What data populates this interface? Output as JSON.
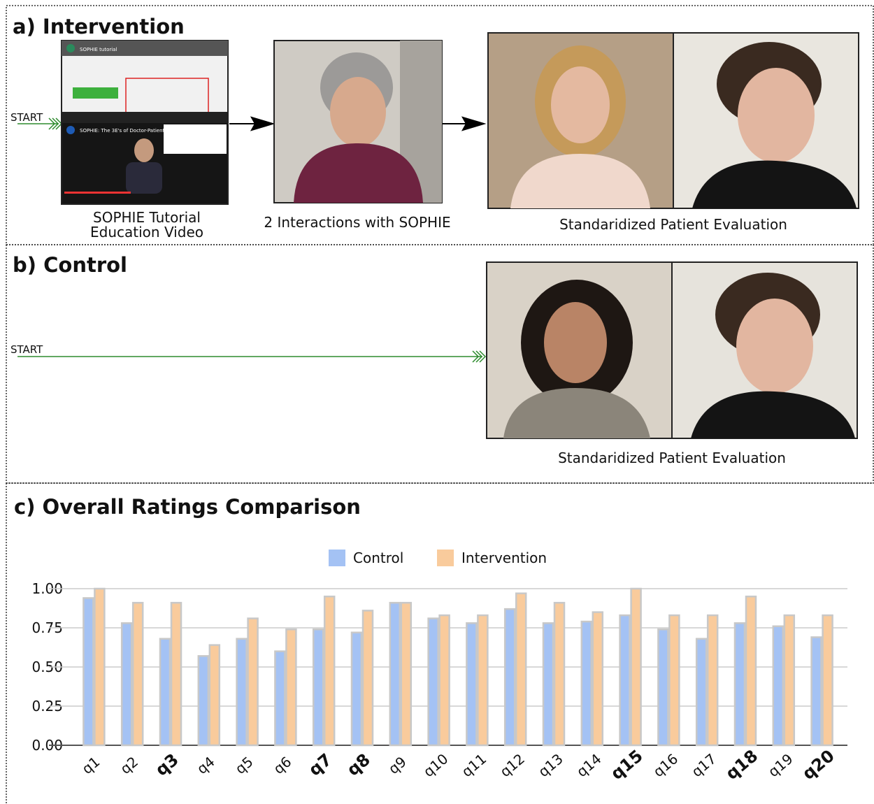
{
  "panels": {
    "a": {
      "title": "a) Intervention",
      "start": "START",
      "video_titles": [
        "SOPHIE tutorial",
        "SOPHIE: The 3E's of Doctor-Patient"
      ],
      "captions": [
        "SOPHIE Tutorial",
        "Education Video",
        "2 Interactions with SOPHIE",
        "Standaridized Patient Evaluation"
      ]
    },
    "b": {
      "title": "b) Control",
      "start": "START",
      "caption": "Standaridized Patient Evaluation"
    }
  },
  "chart_data": {
    "type": "bar",
    "title": "c) Overall Ratings Comparison",
    "categories": [
      "q1",
      "q2",
      "q3",
      "q4",
      "q5",
      "q6",
      "q7",
      "q8",
      "q9",
      "q10",
      "q11",
      "q12",
      "q13",
      "q14",
      "q15",
      "q16",
      "q17",
      "q18",
      "q19",
      "q20"
    ],
    "category_bold": [
      false,
      false,
      true,
      false,
      false,
      false,
      true,
      true,
      false,
      false,
      false,
      false,
      false,
      false,
      true,
      false,
      false,
      true,
      false,
      true
    ],
    "series": [
      {
        "name": "Control",
        "color": "#a4c2f4",
        "values": [
          0.94,
          0.78,
          0.68,
          0.57,
          0.68,
          0.6,
          0.74,
          0.72,
          0.91,
          0.81,
          0.78,
          0.87,
          0.78,
          0.79,
          0.83,
          0.74,
          0.68,
          0.78,
          0.76,
          0.69
        ]
      },
      {
        "name": "Intervention",
        "color": "#f9cb9c",
        "values": [
          1.0,
          0.91,
          0.91,
          0.64,
          0.81,
          0.74,
          0.95,
          0.86,
          0.91,
          0.83,
          0.83,
          0.97,
          0.91,
          0.85,
          1.0,
          0.83,
          0.83,
          0.95,
          0.83,
          0.83
        ]
      }
    ],
    "ylim": [
      0,
      1
    ],
    "yticks": [
      {
        "value": 0,
        "label": "0.00"
      },
      {
        "value": 0.25,
        "label": "0.25"
      },
      {
        "value": 0.5,
        "label": "0.50"
      },
      {
        "value": 0.75,
        "label": "0.75"
      },
      {
        "value": 1,
        "label": "1.00"
      }
    ],
    "grid": true
  }
}
